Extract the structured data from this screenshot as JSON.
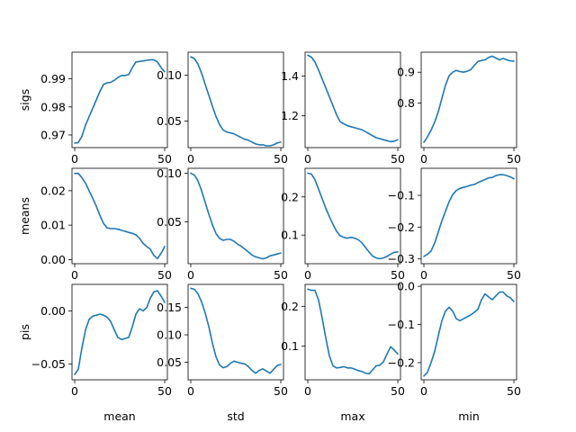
{
  "chart_data": {
    "type": "line",
    "layout": "grid 3 rows x 4 columns",
    "row_labels": [
      "sigs",
      "means",
      "pis"
    ],
    "col_labels": [
      "mean",
      "std",
      "max",
      "min"
    ],
    "xlim": [
      -1.5,
      51.5
    ],
    "xticks": [
      0,
      50
    ],
    "line_color": "#1f77b4",
    "panels": [
      [
        {
          "row": "sigs",
          "col": "mean",
          "ylim": [
            0.9655,
            0.9995
          ],
          "yticks": [
            0.97,
            0.98,
            0.99
          ],
          "x": [
            0,
            2,
            4,
            6,
            8,
            10,
            12,
            14,
            16,
            18,
            20,
            22,
            24,
            26,
            28,
            30,
            32,
            34,
            36,
            38,
            40,
            42,
            44,
            46,
            48,
            50
          ],
          "y": [
            0.9671,
            0.9673,
            0.9695,
            0.9735,
            0.9765,
            0.9795,
            0.9825,
            0.9855,
            0.988,
            0.9886,
            0.9888,
            0.9895,
            0.9905,
            0.9912,
            0.9912,
            0.9915,
            0.994,
            0.996,
            0.9962,
            0.9964,
            0.9966,
            0.9968,
            0.9968,
            0.996,
            0.994,
            0.9925
          ]
        },
        {
          "row": "sigs",
          "col": "std",
          "ylim": [
            0.021,
            0.125
          ],
          "yticks": [
            0.05,
            0.1
          ],
          "x": [
            0,
            2,
            4,
            6,
            8,
            10,
            12,
            14,
            16,
            18,
            20,
            22,
            24,
            26,
            28,
            30,
            32,
            34,
            36,
            38,
            40,
            42,
            44,
            46,
            48,
            50
          ],
          "y": [
            0.12,
            0.118,
            0.112,
            0.102,
            0.09,
            0.078,
            0.066,
            0.055,
            0.046,
            0.04,
            0.038,
            0.037,
            0.036,
            0.034,
            0.032,
            0.03,
            0.029,
            0.027,
            0.025,
            0.024,
            0.024,
            0.023,
            0.023,
            0.024,
            0.026,
            0.027
          ]
        },
        {
          "row": "sigs",
          "col": "max",
          "ylim": [
            1.04,
            1.52
          ],
          "yticks": [
            1.2,
            1.4
          ],
          "x": [
            0,
            2,
            4,
            6,
            8,
            10,
            12,
            14,
            16,
            18,
            20,
            22,
            24,
            26,
            28,
            30,
            32,
            34,
            36,
            38,
            40,
            42,
            44,
            46,
            48,
            50
          ],
          "y": [
            1.505,
            1.495,
            1.47,
            1.43,
            1.385,
            1.34,
            1.295,
            1.25,
            1.205,
            1.17,
            1.16,
            1.15,
            1.145,
            1.14,
            1.135,
            1.13,
            1.12,
            1.11,
            1.1,
            1.09,
            1.085,
            1.08,
            1.075,
            1.07,
            1.072,
            1.08
          ]
        },
        {
          "row": "sigs",
          "col": "min",
          "ylim": [
            0.655,
            0.965
          ],
          "yticks": [
            0.8,
            0.9
          ],
          "x": [
            0,
            2,
            4,
            6,
            8,
            10,
            12,
            14,
            16,
            18,
            20,
            22,
            24,
            26,
            28,
            30,
            32,
            34,
            36,
            38,
            40,
            42,
            44,
            46,
            48,
            50
          ],
          "y": [
            0.672,
            0.69,
            0.712,
            0.738,
            0.772,
            0.815,
            0.858,
            0.888,
            0.9,
            0.906,
            0.902,
            0.9,
            0.903,
            0.908,
            0.922,
            0.935,
            0.938,
            0.94,
            0.948,
            0.952,
            0.946,
            0.94,
            0.945,
            0.94,
            0.937,
            0.936
          ]
        }
      ],
      [
        {
          "row": "means",
          "col": "mean",
          "ylim": [
            -0.0012,
            0.0265
          ],
          "yticks": [
            0.0,
            0.01,
            0.02
          ],
          "x": [
            0,
            2,
            4,
            6,
            8,
            10,
            12,
            14,
            16,
            18,
            20,
            22,
            24,
            26,
            28,
            30,
            32,
            34,
            36,
            38,
            40,
            42,
            44,
            46,
            48,
            50
          ],
          "y": [
            0.025,
            0.025,
            0.0238,
            0.0222,
            0.02,
            0.0178,
            0.0155,
            0.0128,
            0.0105,
            0.0092,
            0.009,
            0.009,
            0.0088,
            0.0085,
            0.0082,
            0.0079,
            0.0076,
            0.0072,
            0.0062,
            0.0047,
            0.0038,
            0.003,
            0.0012,
            0.0003,
            0.0018,
            0.0038
          ]
        },
        {
          "row": "means",
          "col": "std",
          "ylim": [
            0.007,
            0.105
          ],
          "yticks": [
            0.05,
            0.1
          ],
          "x": [
            0,
            2,
            4,
            6,
            8,
            10,
            12,
            14,
            16,
            18,
            20,
            22,
            24,
            26,
            28,
            30,
            32,
            34,
            36,
            38,
            40,
            42,
            44,
            46,
            48,
            50
          ],
          "y": [
            0.1,
            0.098,
            0.092,
            0.082,
            0.07,
            0.058,
            0.047,
            0.038,
            0.033,
            0.031,
            0.032,
            0.032,
            0.03,
            0.027,
            0.025,
            0.022,
            0.019,
            0.016,
            0.014,
            0.013,
            0.012,
            0.013,
            0.015,
            0.016,
            0.017,
            0.018
          ]
        },
        {
          "row": "means",
          "col": "max",
          "ylim": [
            0.025,
            0.275
          ],
          "yticks": [
            0.1,
            0.2
          ],
          "x": [
            0,
            2,
            4,
            6,
            8,
            10,
            12,
            14,
            16,
            18,
            20,
            22,
            24,
            26,
            28,
            30,
            32,
            34,
            36,
            38,
            40,
            42,
            44,
            46,
            48,
            50
          ],
          "y": [
            0.262,
            0.26,
            0.245,
            0.22,
            0.195,
            0.17,
            0.148,
            0.128,
            0.11,
            0.098,
            0.094,
            0.092,
            0.094,
            0.092,
            0.088,
            0.08,
            0.068,
            0.056,
            0.045,
            0.04,
            0.038,
            0.04,
            0.044,
            0.05,
            0.055,
            0.056
          ]
        },
        {
          "row": "means",
          "col": "min",
          "ylim": [
            -0.315,
            -0.015
          ],
          "yticks": [
            -0.3,
            -0.2,
            -0.1
          ],
          "x": [
            0,
            2,
            4,
            6,
            8,
            10,
            12,
            14,
            16,
            18,
            20,
            22,
            24,
            26,
            28,
            30,
            32,
            34,
            36,
            38,
            40,
            42,
            44,
            46,
            48,
            50
          ],
          "y": [
            -0.292,
            -0.285,
            -0.275,
            -0.25,
            -0.215,
            -0.18,
            -0.15,
            -0.12,
            -0.098,
            -0.085,
            -0.078,
            -0.075,
            -0.072,
            -0.068,
            -0.066,
            -0.06,
            -0.055,
            -0.05,
            -0.045,
            -0.044,
            -0.038,
            -0.035,
            -0.035,
            -0.038,
            -0.042,
            -0.048
          ]
        }
      ],
      [
        {
          "row": "pis",
          "col": "mean",
          "ylim": [
            -0.065,
            0.025
          ],
          "yticks": [
            -0.05,
            0.0
          ],
          "x": [
            0,
            2,
            4,
            6,
            8,
            10,
            12,
            14,
            16,
            18,
            20,
            22,
            24,
            26,
            28,
            30,
            32,
            34,
            36,
            38,
            40,
            42,
            44,
            46,
            48,
            50
          ],
          "y": [
            -0.06,
            -0.055,
            -0.035,
            -0.018,
            -0.008,
            -0.005,
            -0.004,
            -0.003,
            -0.004,
            -0.006,
            -0.01,
            -0.018,
            -0.025,
            -0.027,
            -0.026,
            -0.025,
            -0.015,
            -0.003,
            0.002,
            0.0,
            0.003,
            0.012,
            0.018,
            0.019,
            0.014,
            0.008
          ]
        },
        {
          "row": "pis",
          "col": "std",
          "ylim": [
            0.018,
            0.192
          ],
          "yticks": [
            0.05,
            0.1,
            0.15
          ],
          "x": [
            0,
            2,
            4,
            6,
            8,
            10,
            12,
            14,
            16,
            18,
            20,
            22,
            24,
            26,
            28,
            30,
            32,
            34,
            36,
            38,
            40,
            42,
            44,
            46,
            48,
            50
          ],
          "y": [
            0.185,
            0.183,
            0.175,
            0.16,
            0.14,
            0.115,
            0.085,
            0.06,
            0.045,
            0.04,
            0.042,
            0.048,
            0.052,
            0.05,
            0.048,
            0.047,
            0.042,
            0.035,
            0.03,
            0.035,
            0.038,
            0.034,
            0.03,
            0.037,
            0.044,
            0.046
          ]
        },
        {
          "row": "pis",
          "col": "max",
          "ylim": [
            0.015,
            0.255
          ],
          "yticks": [
            0.1,
            0.2
          ],
          "x": [
            0,
            2,
            4,
            6,
            8,
            10,
            12,
            14,
            16,
            18,
            20,
            22,
            24,
            26,
            28,
            30,
            32,
            34,
            36,
            38,
            40,
            42,
            44,
            46,
            48,
            50
          ],
          "y": [
            0.243,
            0.24,
            0.24,
            0.215,
            0.17,
            0.12,
            0.075,
            0.05,
            0.045,
            0.046,
            0.048,
            0.045,
            0.045,
            0.042,
            0.038,
            0.036,
            0.032,
            0.03,
            0.04,
            0.05,
            0.052,
            0.06,
            0.08,
            0.098,
            0.09,
            0.08
          ]
        },
        {
          "row": "pis",
          "col": "min",
          "ylim": [
            -0.245,
            0.005
          ],
          "yticks": [
            -0.2,
            -0.1,
            0.0
          ],
          "x": [
            0,
            2,
            4,
            6,
            8,
            10,
            12,
            14,
            16,
            18,
            20,
            22,
            24,
            26,
            28,
            30,
            32,
            34,
            36,
            38,
            40,
            42,
            44,
            46,
            48,
            50
          ],
          "y": [
            -0.235,
            -0.225,
            -0.2,
            -0.17,
            -0.13,
            -0.09,
            -0.065,
            -0.055,
            -0.065,
            -0.085,
            -0.09,
            -0.085,
            -0.08,
            -0.075,
            -0.068,
            -0.06,
            -0.035,
            -0.02,
            -0.028,
            -0.035,
            -0.025,
            -0.015,
            -0.015,
            -0.025,
            -0.03,
            -0.04
          ]
        }
      ]
    ]
  }
}
